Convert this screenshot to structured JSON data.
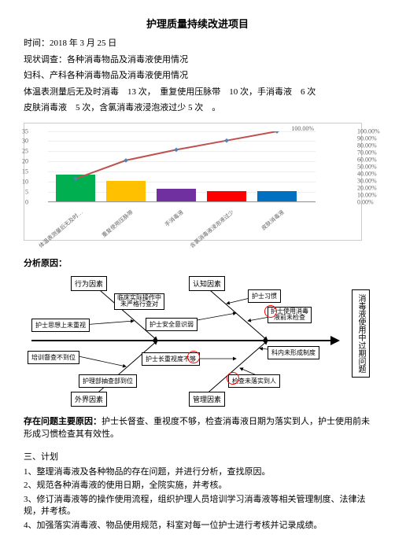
{
  "title": "护理质量持续改进项目",
  "meta": {
    "date_line": "时间：2018 年 3 月 25 日",
    "survey_line": "现状调查：各种消毒物品及消毒液使用情况",
    "dept_line": "妇科、产科各种消毒物品及消毒液使用情况",
    "stats_line": "体温表测量后无及时消毒　13 次，　重复使用压脉带　10 次，手消毒液　6 次",
    "stats_line2": "皮肤消毒液　5 次，含氯消毒液浸泡液过少 5 次　。"
  },
  "chart": {
    "y_left": {
      "max": 35,
      "ticks": [
        0,
        5,
        10,
        15,
        20,
        25,
        30,
        35
      ]
    },
    "y_right": {
      "ticks": [
        "0.00%",
        "10.00%",
        "20.00%",
        "30.00%",
        "40.00%",
        "50.00%",
        "60.00%",
        "70.00%",
        "80.00%",
        "90.00%",
        "100.00%"
      ]
    },
    "bars": [
      {
        "label": "体温表测量后无及时…",
        "value": 13,
        "color": "#00b050"
      },
      {
        "label": "重复使用压脉带",
        "value": 10,
        "color": "#ffc000"
      },
      {
        "label": "手消毒液",
        "value": 6,
        "color": "#7030a0"
      },
      {
        "label": "含氯消毒液浸泡液过少",
        "value": 5,
        "color": "#ff0000"
      },
      {
        "label": "皮肤消毒液",
        "value": 5,
        "color": "#0070c0"
      }
    ],
    "line_label": "100.00%",
    "line_points_pct": [
      33,
      59,
      74,
      87,
      100
    ],
    "line_color": "#c0504d",
    "marker_color": "#4f81bd"
  },
  "analysis_header": "分析原因：",
  "fishbone": {
    "head": "消毒液使用中过期问题",
    "top_categories": [
      "行为因素",
      "认知因素"
    ],
    "bottom_categories": [
      "外界因素",
      "管理因素"
    ],
    "causes": {
      "t1a": "临床实际操作中未严格行查对",
      "t1b": "护士思想上未重视",
      "t2a": "护士习惯",
      "t2b": "护士使用消毒液前未检查",
      "t2c": "护士安全意识弱",
      "b1a": "培训督查不到位",
      "b1b": "护理部抽查部到位",
      "b2a": "护士长重视度不够",
      "b2b": "科内未形成制度",
      "b2c": "检查未落实到人"
    }
  },
  "main_reason_label": "存在问题主要原因：",
  "main_reason_text": "护士长督查、重视度不够，检查消毒液日期为落实到人，护士使用前未形成习惯检查其有效性。",
  "plan_header": "三、计划",
  "plan_items": [
    "1、整理消毒液及各种物品的存在问题，并进行分析，查找原因。",
    "2、规范各种消毒液的使用日期，全院实施，并考核。",
    "3、修订消毒液等的操作使用流程，组织护理人员培训学习消毒液等相关管理制度、法律法规，并考核。",
    "4、加强落实消毒液、物品使用规范，科室对每一位护士进行考核并记录成绩。"
  ]
}
